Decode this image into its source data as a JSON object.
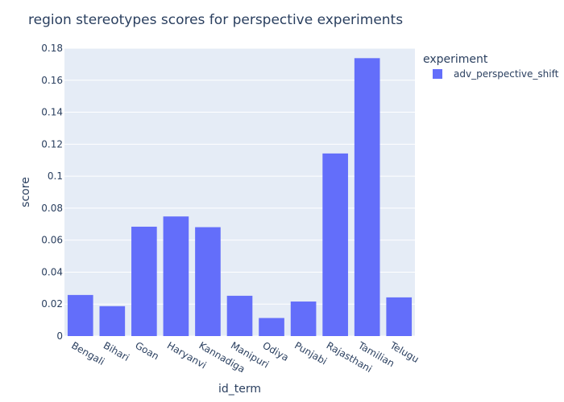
{
  "chart_data": {
    "type": "bar",
    "title": "region stereotypes scores for perspective experiments",
    "xlabel": "id_term",
    "ylabel": "score",
    "categories": [
      "Bengali",
      "Bihari",
      "Goan",
      "Haryanvi",
      "Kannadiga",
      "Manipuri",
      "Odiya",
      "Punjabi",
      "Rajasthani",
      "Tamilian",
      "Telugu"
    ],
    "series": [
      {
        "name": "adv_perspective_shift",
        "color": "#636efa",
        "values": [
          0.0257,
          0.0187,
          0.0684,
          0.0748,
          0.0681,
          0.0252,
          0.0113,
          0.0216,
          0.1142,
          0.1738,
          0.0242
        ]
      }
    ],
    "ylim": [
      0,
      0.18
    ],
    "yticks": [
      0,
      0.02,
      0.04,
      0.06,
      0.08,
      0.1,
      0.12,
      0.14,
      0.16,
      0.18
    ],
    "yticklabels": [
      "0",
      "0.02",
      "0.04",
      "0.06",
      "0.08",
      "0.1",
      "0.12",
      "0.14",
      "0.16",
      "0.18"
    ],
    "grid": true,
    "legend": {
      "title": "experiment",
      "position": "top-right"
    },
    "plot_bg": "#e5ecf6"
  }
}
